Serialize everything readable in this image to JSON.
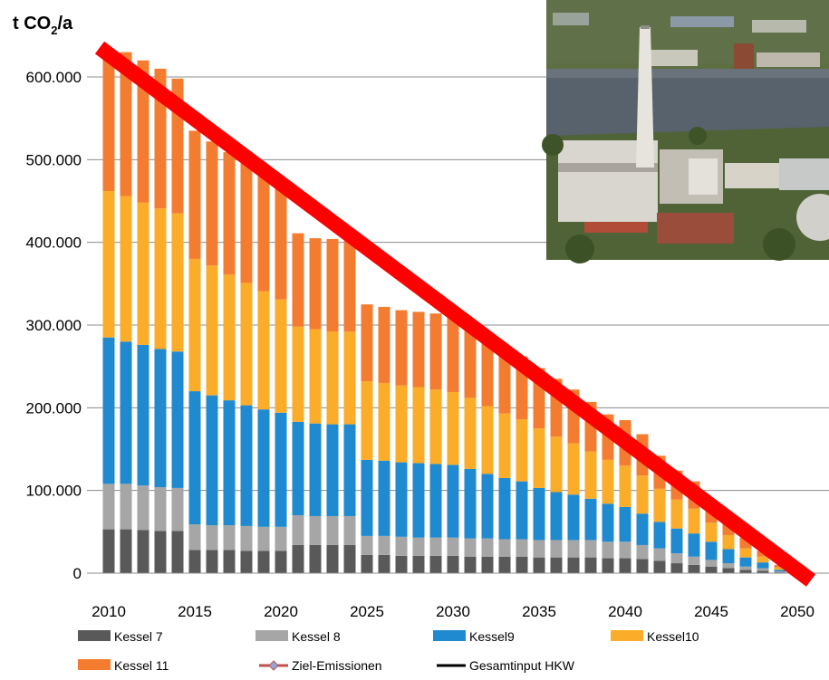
{
  "chart_data": {
    "type": "bar",
    "stacked": true,
    "ylabel": "t CO2/a",
    "ylabel_main": "t CO",
    "ylabel_sub": "2",
    "ylabel_suffix": "/a",
    "ylim": [
      0,
      650000
    ],
    "yticks": [
      0,
      100000,
      200000,
      300000,
      400000,
      500000,
      600000
    ],
    "ytick_labels": [
      "0",
      "100.000",
      "200.000",
      "300.000",
      "400.000",
      "500.000",
      "600.000"
    ],
    "xtick_labels": [
      "2010",
      "2015",
      "2020",
      "2025",
      "2030",
      "2035",
      "2040",
      "2045",
      "2050"
    ],
    "grid": true,
    "legend_position": "bottom",
    "years": [
      2010,
      2011,
      2012,
      2013,
      2014,
      2015,
      2016,
      2017,
      2018,
      2019,
      2020,
      2021,
      2022,
      2023,
      2024,
      2025,
      2026,
      2027,
      2028,
      2029,
      2030,
      2031,
      2032,
      2033,
      2034,
      2035,
      2036,
      2037,
      2038,
      2039,
      2040,
      2041,
      2042,
      2043,
      2044,
      2045,
      2046,
      2047,
      2048,
      2049,
      2050
    ],
    "series": [
      {
        "name": "Kessel 7",
        "color": "#595959",
        "values": [
          53000,
          53000,
          52000,
          51000,
          51000,
          28000,
          28000,
          28000,
          27000,
          27000,
          27000,
          34000,
          34000,
          34000,
          34000,
          22000,
          22000,
          21000,
          21000,
          21000,
          21000,
          20000,
          20000,
          20000,
          20000,
          19000,
          19000,
          19000,
          19000,
          18000,
          18000,
          17000,
          15000,
          12000,
          10000,
          8000,
          6000,
          4000,
          3000,
          1000,
          0
        ]
      },
      {
        "name": "Kessel 8",
        "color": "#a6a6a6",
        "values": [
          55000,
          55000,
          54000,
          53000,
          52000,
          31000,
          30000,
          30000,
          30000,
          29000,
          29000,
          36000,
          35000,
          35000,
          35000,
          23000,
          23000,
          23000,
          22000,
          22000,
          22000,
          22000,
          22000,
          21000,
          21000,
          21000,
          21000,
          21000,
          21000,
          20000,
          20000,
          17000,
          15000,
          12000,
          10000,
          8000,
          6000,
          4000,
          3000,
          1000,
          0
        ]
      },
      {
        "name": "Kessel9",
        "color": "#1f8ad0",
        "values": [
          177000,
          172000,
          170000,
          167000,
          165000,
          161000,
          157000,
          151000,
          146000,
          142000,
          138000,
          113000,
          112000,
          111000,
          111000,
          92000,
          91000,
          90000,
          90000,
          89000,
          88000,
          84000,
          78000,
          74000,
          70000,
          63000,
          58000,
          55000,
          50000,
          46000,
          42000,
          38000,
          32000,
          30000,
          28000,
          22000,
          17000,
          11000,
          7000,
          2000,
          0
        ]
      },
      {
        "name": "Kessel10",
        "color": "#fbac28",
        "values": [
          177000,
          176000,
          172000,
          170000,
          167000,
          160000,
          157000,
          152000,
          148000,
          143000,
          137000,
          115000,
          114000,
          112000,
          112000,
          95000,
          94000,
          93000,
          92000,
          90000,
          88000,
          86000,
          82000,
          78000,
          75000,
          72000,
          67000,
          62000,
          57000,
          53000,
          50000,
          46000,
          40000,
          35000,
          30000,
          23000,
          17000,
          11000,
          7000,
          3000,
          0
        ]
      },
      {
        "name": "Kessel 11",
        "color": "#f47c30",
        "values": [
          172000,
          174000,
          172000,
          169000,
          163000,
          155000,
          150000,
          148000,
          145000,
          144000,
          141000,
          113000,
          110000,
          112000,
          110000,
          93000,
          92000,
          91000,
          91000,
          92000,
          90000,
          88000,
          85000,
          81000,
          76000,
          73000,
          70000,
          65000,
          60000,
          55000,
          55000,
          50000,
          40000,
          35000,
          33000,
          26000,
          20000,
          13000,
          7000,
          3000,
          0
        ]
      },
      {
        "name": "Ziel-Emissionen",
        "color": "#c0504d",
        "marker": "diamond",
        "values": []
      },
      {
        "name": "Gesamtinput HKW",
        "color": "#000000",
        "values": []
      }
    ],
    "overlay_line": {
      "from": [
        2010,
        630000
      ],
      "to": [
        2050,
        0
      ],
      "color": "#ff0000"
    }
  },
  "photo": {
    "subject": "power-plant-photo"
  }
}
